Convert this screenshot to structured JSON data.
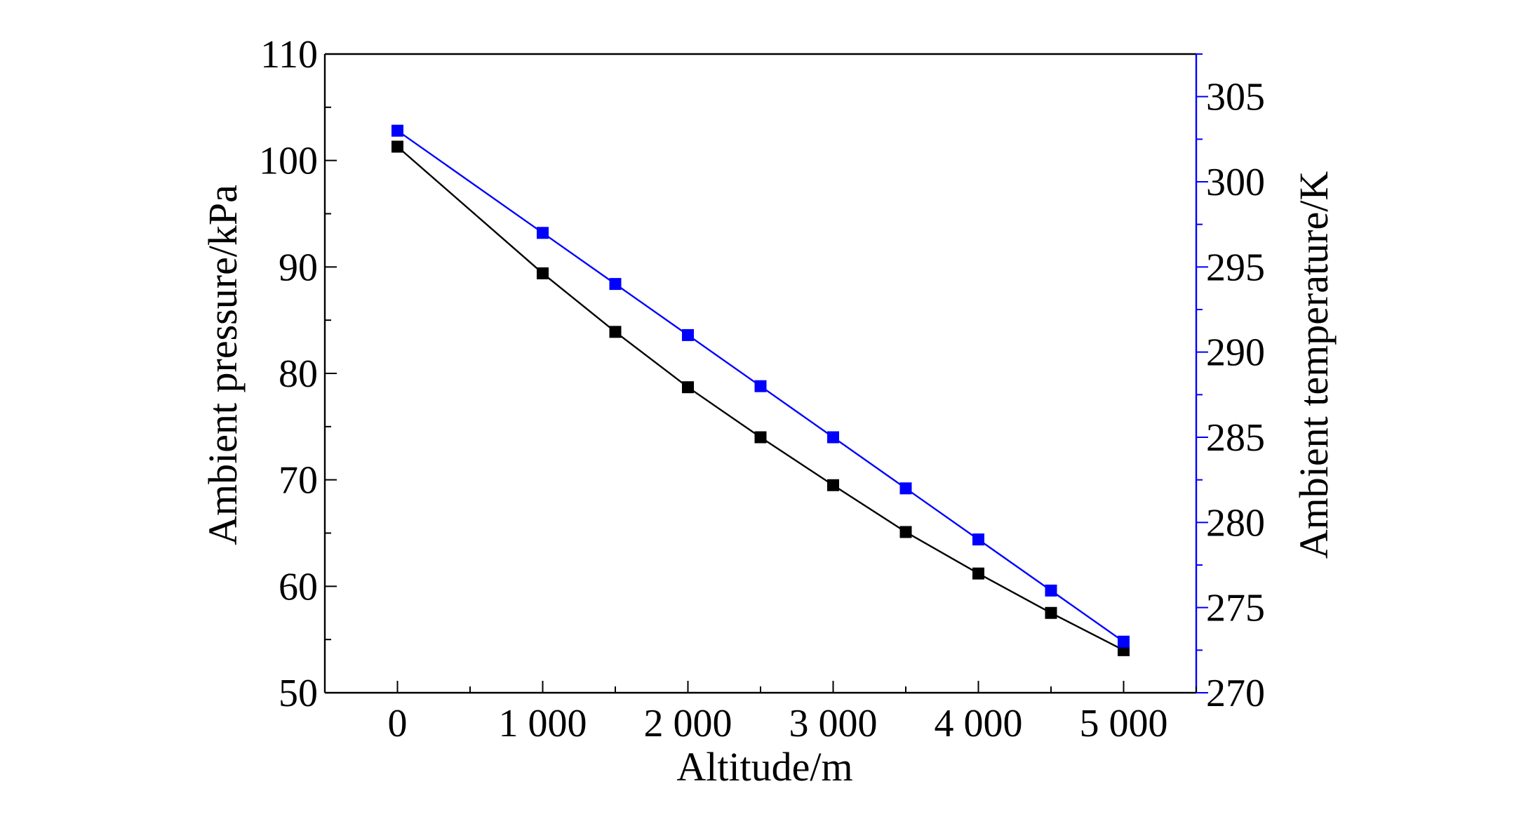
{
  "chart_data": {
    "type": "line",
    "title": "",
    "xlabel": "Altitude/m",
    "ylabel": "Ambient pressure/kPa",
    "y2label": "Ambient temperature/K",
    "xlim": [
      -500,
      5500
    ],
    "ylim": [
      50,
      110
    ],
    "y2lim": [
      270,
      307.5
    ],
    "x_ticks": [
      0,
      1000,
      2000,
      3000,
      4000,
      5000
    ],
    "x_tick_labels": [
      "0",
      "1 000",
      "2 000",
      "3 000",
      "4 000",
      "5 000"
    ],
    "y_ticks": [
      50,
      60,
      70,
      80,
      90,
      100,
      110
    ],
    "y_tick_labels": [
      "50",
      "60",
      "70",
      "80",
      "90",
      "100",
      "110"
    ],
    "y2_ticks": [
      270,
      275,
      280,
      285,
      290,
      295,
      300,
      305
    ],
    "y2_tick_labels": [
      "270",
      "275",
      "280",
      "285",
      "290",
      "295",
      "300",
      "305"
    ],
    "grid": false,
    "legend": "none",
    "x": [
      0,
      1000,
      1500,
      2000,
      2500,
      3000,
      3500,
      4000,
      4500,
      5000
    ],
    "series": [
      {
        "axis": "left",
        "color": "#000000",
        "marker": "square",
        "values": [
          101.3,
          89.4,
          83.9,
          78.7,
          74.0,
          69.5,
          65.1,
          61.2,
          57.5,
          54.0
        ]
      },
      {
        "axis": "right",
        "color": "#0000ff",
        "marker": "square",
        "values": [
          303.0,
          297.0,
          294.0,
          291.0,
          288.0,
          285.0,
          282.0,
          279.0,
          276.0,
          273.0
        ]
      }
    ]
  }
}
